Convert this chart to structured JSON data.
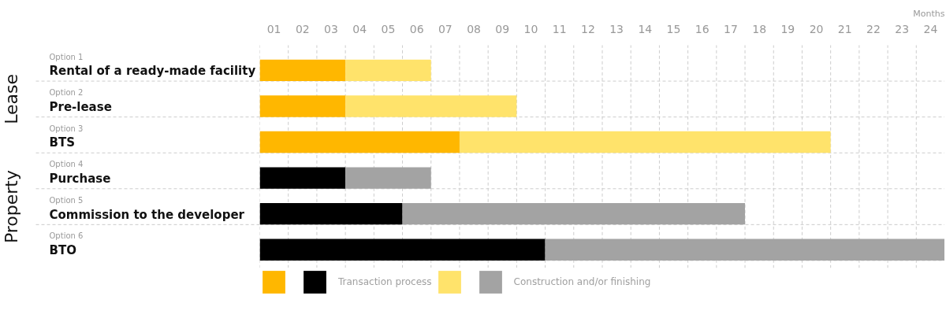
{
  "chart_data": {
    "type": "bar",
    "orientation": "horizontal",
    "stacked": true,
    "xlabel": "Months",
    "categories": [
      "Rental of a ready-made facility",
      "Pre-lease",
      "BTS",
      "Purchase",
      "Commission to the developer",
      "BTO"
    ],
    "series": [
      {
        "name": "Transaction process",
        "colors": [
          "#ffb700",
          "#ffb700",
          "#ffb700",
          "#000000",
          "#000000",
          "#000000"
        ],
        "values": [
          3,
          3,
          7,
          3,
          5,
          10
        ]
      },
      {
        "name": "Construction and/or finishing",
        "colors": [
          "#ffe36b",
          "#ffe36b",
          "#ffe36b",
          "#a3a3a3",
          "#a3a3a3",
          "#a3a3a3"
        ],
        "values": [
          3,
          6,
          13,
          3,
          12,
          14
        ]
      }
    ],
    "xlim": [
      0,
      24
    ],
    "xticks": [
      {
        "value": 0,
        "label": null
      },
      {
        "value": 1,
        "label": null
      },
      {
        "value": 2,
        "label": null
      },
      {
        "value": 3,
        "label": null
      },
      {
        "value": 4,
        "label": null
      },
      {
        "value": 5,
        "label": null
      },
      {
        "value": 6,
        "label": null
      },
      {
        "value": 7,
        "label": null
      },
      {
        "value": 8,
        "label": null
      },
      {
        "value": 9,
        "label": null
      },
      {
        "value": 10,
        "label": null
      },
      {
        "value": 11,
        "label": null
      },
      {
        "value": 12,
        "label": null
      },
      {
        "value": 13,
        "label": null
      },
      {
        "value": 14,
        "label": null
      },
      {
        "value": 15,
        "label": null
      },
      {
        "value": 16,
        "label": null
      },
      {
        "value": 17,
        "label": null
      },
      {
        "value": 18,
        "label": null
      },
      {
        "value": 19,
        "label": null
      },
      {
        "value": 20,
        "label": null
      },
      {
        "value": 21,
        "label": null
      },
      {
        "value": 22,
        "label": null
      },
      {
        "value": 23,
        "label": null
      },
      {
        "value": 0.5,
        "label": "01"
      },
      {
        "value": 1.5,
        "label": "02"
      },
      {
        "value": 2.5,
        "label": "03"
      },
      {
        "value": 3.5,
        "label": "04"
      },
      {
        "value": 4.5,
        "label": "05"
      },
      {
        "value": 5.5,
        "label": "06"
      },
      {
        "value": 6.5,
        "label": "07"
      },
      {
        "value": 7.5,
        "label": "08"
      },
      {
        "value": 8.5,
        "label": "09"
      },
      {
        "value": 9.5,
        "label": "10"
      },
      {
        "value": 10.5,
        "label": "11"
      },
      {
        "value": 11.5,
        "label": "12"
      },
      {
        "value": 12.5,
        "label": "13"
      },
      {
        "value": 13.5,
        "label": "14"
      },
      {
        "value": 14.5,
        "label": "15"
      },
      {
        "value": 15.5,
        "label": "16"
      },
      {
        "value": 16.5,
        "label": "17"
      },
      {
        "value": 17.5,
        "label": "18"
      },
      {
        "value": 18.5,
        "label": "19"
      },
      {
        "value": 19.5,
        "label": "20"
      },
      {
        "value": 20.5,
        "label": "21"
      },
      {
        "value": 21.5,
        "label": "22"
      },
      {
        "value": 22.5,
        "label": "23"
      },
      {
        "value": 23.5,
        "label": "24"
      }
    ],
    "grid": true,
    "legend": "bottom",
    "annotations": [
      "Option 1",
      "Option 2",
      "Option 3",
      "Option 4",
      "Option 5",
      "Option 6",
      "Lease",
      "Property"
    ]
  }
}
